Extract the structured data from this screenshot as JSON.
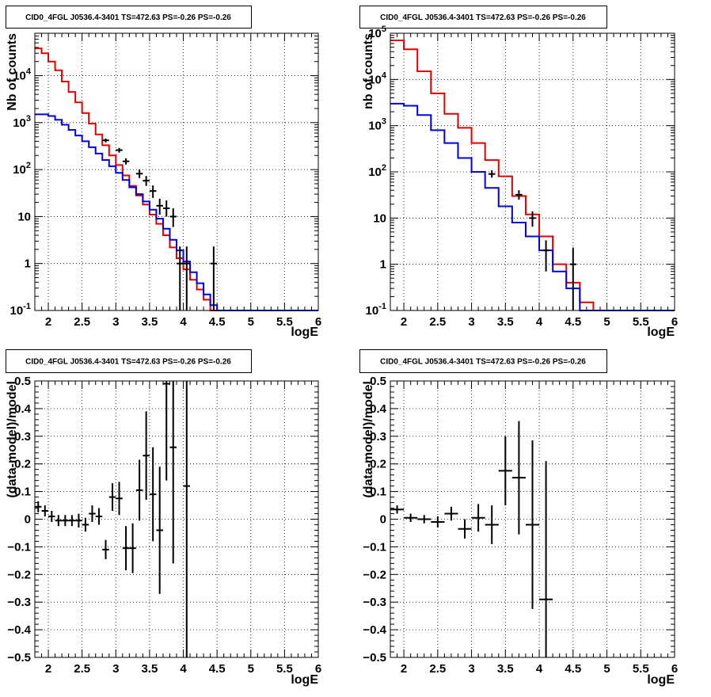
{
  "colors": {
    "data": "#000000",
    "model": "#e00000",
    "background": "#0000e0",
    "grid": "#000000"
  },
  "chart_data": [
    {
      "type": "step-histogram",
      "title": "CID0_4FGL J0536.4-3401 TS=472.63 PS=-0.26 PS=-0.26",
      "xlabel": "logE",
      "ylabel": "Nb of counts",
      "xscale": "linear",
      "yscale": "log",
      "xlim": [
        1.8,
        6.0
      ],
      "ylim": [
        0.1,
        80000
      ],
      "grid": true,
      "xticks": [
        "2",
        "2.5",
        "3",
        "3.5",
        "4",
        "4.5",
        "5",
        "5.5",
        "6"
      ],
      "yticks": [
        "10^-1",
        "1",
        "10",
        "10^2",
        "10^3",
        "10^4"
      ],
      "series": [
        {
          "kind": "model",
          "color": "red",
          "bins": [
            1.8,
            1.9,
            2.0,
            2.1,
            2.2,
            2.3,
            2.4,
            2.5,
            2.6,
            2.7,
            2.8,
            2.9,
            3.0,
            3.1,
            3.2,
            3.3,
            3.4,
            3.5,
            3.6,
            3.7,
            3.8,
            3.9,
            4.0,
            4.1,
            4.2,
            4.3,
            4.4,
            4.5,
            4.6,
            4.7,
            6.0
          ],
          "values": [
            38000,
            30000,
            20000,
            13000,
            7500,
            4500,
            2700,
            1600,
            950,
            560,
            330,
            200,
            125,
            75,
            45,
            28,
            18,
            11,
            7,
            4,
            2.2,
            1.3,
            0.75,
            0.45,
            0.28,
            0.17,
            0.1,
            0.1,
            0.1,
            0.1
          ]
        },
        {
          "kind": "background",
          "color": "blue",
          "bins": [
            1.8,
            1.9,
            2.0,
            2.1,
            2.2,
            2.3,
            2.4,
            2.5,
            2.6,
            2.7,
            2.8,
            2.9,
            3.0,
            3.1,
            3.2,
            3.3,
            3.4,
            3.5,
            3.6,
            3.7,
            3.8,
            3.9,
            4.0,
            4.1,
            4.2,
            4.3,
            4.4,
            4.5,
            4.6,
            4.7,
            6.0
          ],
          "values": [
            1500,
            1500,
            1380,
            1150,
            900,
            700,
            530,
            400,
            300,
            220,
            160,
            118,
            85,
            60,
            42,
            30,
            21,
            14,
            9,
            5.5,
            3.2,
            1.9,
            1.1,
            0.65,
            0.38,
            0.22,
            0.13,
            0.1,
            0.1,
            0.1
          ]
        }
      ],
      "data_points": [
        {
          "x": 2.85,
          "y": 420,
          "ylo": 380,
          "yhi": 460
        },
        {
          "x": 3.05,
          "y": 260,
          "ylo": 230,
          "yhi": 290
        },
        {
          "x": 3.15,
          "y": 150,
          "ylo": 128,
          "yhi": 174
        },
        {
          "x": 3.35,
          "y": 82,
          "ylo": 66,
          "yhi": 100
        },
        {
          "x": 3.45,
          "y": 58,
          "ylo": 45,
          "yhi": 73
        },
        {
          "x": 3.55,
          "y": 35,
          "ylo": 25,
          "yhi": 46
        },
        {
          "x": 3.65,
          "y": 17,
          "ylo": 11,
          "yhi": 24
        },
        {
          "x": 3.75,
          "y": 15,
          "ylo": 10,
          "yhi": 22
        },
        {
          "x": 3.85,
          "y": 10,
          "ylo": 6,
          "yhi": 15
        },
        {
          "x": 3.95,
          "y": 1,
          "ylo": 0.1,
          "yhi": 2.3
        },
        {
          "x": 4.05,
          "y": 1,
          "ylo": 0.1,
          "yhi": 2.3
        },
        {
          "x": 4.45,
          "y": 1,
          "ylo": 0.1,
          "yhi": 2.3
        }
      ]
    },
    {
      "type": "step-histogram",
      "title": "CID0_4FGL J0536.4-3401 TS=472.63 PS=-0.26 PS=-0.26",
      "xlabel": "logE",
      "ylabel": "nb of counts",
      "xscale": "linear",
      "yscale": "log",
      "xlim": [
        1.8,
        6.0
      ],
      "ylim": [
        0.1,
        100000
      ],
      "grid": true,
      "xticks": [
        "2",
        "2.5",
        "3",
        "3.5",
        "4",
        "4.5",
        "5",
        "5.5",
        "6"
      ],
      "yticks": [
        "10^-1",
        "1",
        "10",
        "10^2",
        "10^3",
        "10^4",
        "10^5"
      ],
      "series": [
        {
          "kind": "model",
          "color": "red",
          "bins": [
            1.8,
            2.0,
            2.2,
            2.4,
            2.6,
            2.8,
            3.0,
            3.2,
            3.4,
            3.6,
            3.8,
            4.0,
            4.2,
            4.4,
            4.6,
            4.8,
            6.0
          ],
          "values": [
            70000,
            45000,
            15000,
            5000,
            1800,
            900,
            420,
            180,
            80,
            30,
            12,
            4,
            1,
            0.4,
            0.15,
            0.1
          ]
        },
        {
          "kind": "background",
          "color": "blue",
          "bins": [
            1.8,
            2.0,
            2.2,
            2.4,
            2.6,
            2.8,
            3.0,
            3.2,
            3.4,
            3.6,
            3.8,
            4.0,
            4.2,
            4.4,
            4.6,
            4.8,
            6.0
          ],
          "values": [
            3000,
            2700,
            1700,
            800,
            420,
            200,
            100,
            45,
            18,
            8,
            4,
            2,
            0.7,
            0.3,
            0.1,
            0.1
          ]
        }
      ],
      "data_points": [
        {
          "x": 3.3,
          "y": 90,
          "ylo": 75,
          "yhi": 108
        },
        {
          "x": 3.7,
          "y": 32,
          "ylo": 25,
          "yhi": 40
        },
        {
          "x": 3.9,
          "y": 10,
          "ylo": 6.5,
          "yhi": 14
        },
        {
          "x": 4.1,
          "y": 2,
          "ylo": 0.7,
          "yhi": 3.3
        },
        {
          "x": 4.5,
          "y": 1,
          "ylo": 0.1,
          "yhi": 2.3
        }
      ]
    },
    {
      "type": "scatter-errorbars",
      "title": "CID0_4FGL J0536.4-3401 TS=472.63 PS=-0.26 PS=-0.26",
      "xlabel": "logE",
      "ylabel": "(data-model)/model",
      "xlim": [
        1.8,
        6.0
      ],
      "ylim": [
        -0.5,
        0.5
      ],
      "grid": true,
      "xticks": [
        "2",
        "2.5",
        "3",
        "3.5",
        "4",
        "4.5",
        "5",
        "5.5",
        "6"
      ],
      "yticks": [
        "-0.5",
        "-0.4",
        "-0.3",
        "-0.2",
        "-0.1",
        "0",
        "0.1",
        "0.2",
        "0.3",
        "0.4",
        "0.5"
      ],
      "points": [
        {
          "x": 1.85,
          "y": 0.045,
          "yerr": 0.02,
          "xerr": 0.05
        },
        {
          "x": 1.95,
          "y": 0.03,
          "yerr": 0.02,
          "xerr": 0.05
        },
        {
          "x": 2.05,
          "y": 0.01,
          "yerr": 0.02,
          "xerr": 0.05
        },
        {
          "x": 2.15,
          "y": -0.005,
          "yerr": 0.02,
          "xerr": 0.05
        },
        {
          "x": 2.25,
          "y": -0.005,
          "yerr": 0.02,
          "xerr": 0.05
        },
        {
          "x": 2.35,
          "y": -0.005,
          "yerr": 0.02,
          "xerr": 0.05
        },
        {
          "x": 2.45,
          "y": -0.005,
          "yerr": 0.025,
          "xerr": 0.05
        },
        {
          "x": 2.55,
          "y": -0.02,
          "yerr": 0.025,
          "xerr": 0.05
        },
        {
          "x": 2.65,
          "y": 0.02,
          "yerr": 0.03,
          "xerr": 0.05
        },
        {
          "x": 2.75,
          "y": 0.01,
          "yerr": 0.03,
          "xerr": 0.05
        },
        {
          "x": 2.85,
          "y": -0.11,
          "yerr": 0.035,
          "xerr": 0.05
        },
        {
          "x": 2.95,
          "y": 0.08,
          "yerr": 0.05,
          "xerr": 0.05
        },
        {
          "x": 3.05,
          "y": 0.075,
          "yerr": 0.06,
          "xerr": 0.05
        },
        {
          "x": 3.15,
          "y": -0.105,
          "yerr": 0.08,
          "xerr": 0.05
        },
        {
          "x": 3.25,
          "y": -0.105,
          "yerr": 0.09,
          "xerr": 0.05
        },
        {
          "x": 3.35,
          "y": 0.105,
          "yerr": 0.11,
          "xerr": 0.05
        },
        {
          "x": 3.45,
          "y": 0.23,
          "yerr": 0.16,
          "xerr": 0.05
        },
        {
          "x": 3.55,
          "y": 0.09,
          "yerr": 0.17,
          "xerr": 0.05
        },
        {
          "x": 3.65,
          "y": -0.04,
          "yerr": 0.23,
          "xerr": 0.05
        },
        {
          "x": 3.75,
          "y": 0.49,
          "yerr": 0.35,
          "xerr": 0.05
        },
        {
          "x": 3.85,
          "y": 0.26,
          "yerr": 0.42,
          "xerr": 0.05
        },
        {
          "x": 4.05,
          "y": 0.12,
          "yerr": 0.62,
          "xerr": 0.05
        }
      ]
    },
    {
      "type": "scatter-errorbars",
      "title": "CID0_4FGL J0536.4-3401 TS=472.63 PS=-0.26 PS=-0.26",
      "xlabel": "logE",
      "ylabel": "(data-model)/model",
      "xlim": [
        1.8,
        6.0
      ],
      "ylim": [
        -0.5,
        0.5
      ],
      "grid": true,
      "xticks": [
        "2",
        "2.5",
        "3",
        "3.5",
        "4",
        "4.5",
        "5",
        "5.5",
        "6"
      ],
      "yticks": [
        "-0.5",
        "-0.4",
        "-0.3",
        "-0.2",
        "-0.1",
        "0",
        "0.1",
        "0.2",
        "0.3",
        "0.4",
        "0.5"
      ],
      "points": [
        {
          "x": 1.9,
          "y": 0.035,
          "yerr": 0.015,
          "xerr": 0.1
        },
        {
          "x": 2.1,
          "y": 0.005,
          "yerr": 0.015,
          "xerr": 0.1
        },
        {
          "x": 2.3,
          "y": 0.0,
          "yerr": 0.015,
          "xerr": 0.1
        },
        {
          "x": 2.5,
          "y": -0.01,
          "yerr": 0.02,
          "xerr": 0.1
        },
        {
          "x": 2.7,
          "y": 0.02,
          "yerr": 0.025,
          "xerr": 0.1
        },
        {
          "x": 2.9,
          "y": -0.035,
          "yerr": 0.035,
          "xerr": 0.1
        },
        {
          "x": 3.1,
          "y": 0.005,
          "yerr": 0.05,
          "xerr": 0.1
        },
        {
          "x": 3.3,
          "y": -0.02,
          "yerr": 0.07,
          "xerr": 0.1
        },
        {
          "x": 3.5,
          "y": 0.175,
          "yerr": 0.125,
          "xerr": 0.1
        },
        {
          "x": 3.7,
          "y": 0.15,
          "yerr": 0.205,
          "xerr": 0.1
        },
        {
          "x": 3.9,
          "y": -0.02,
          "yerr": 0.305,
          "xerr": 0.1
        },
        {
          "x": 4.1,
          "y": -0.29,
          "yerr": 0.5,
          "xerr": 0.1
        }
      ]
    }
  ]
}
